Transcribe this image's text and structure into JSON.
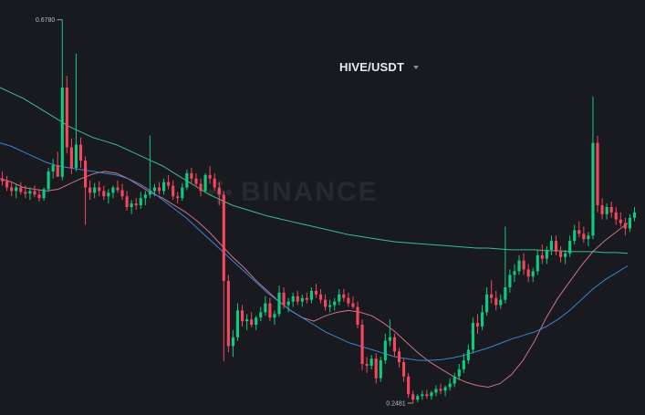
{
  "header": {
    "pair": "HIVE/USDT"
  },
  "watermark": {
    "text": "BINANCE"
  },
  "colors": {
    "background": "#181a20",
    "up": "#0ecb81",
    "down": "#f6465d",
    "ma_short": "#e07c96",
    "ma_mid": "#3f8fe0",
    "ma_long": "#3ecf9a"
  },
  "chart_data": {
    "type": "candlestick",
    "xlabel": "",
    "ylabel": "",
    "ylim": [
      0.245,
      0.69
    ],
    "grid": false,
    "annotations": {
      "high": {
        "label": "0.6780",
        "value": 0.678
      },
      "low": {
        "label": "0.2481",
        "value": 0.2481
      }
    },
    "ohlc": [
      [
        0.5,
        0.508,
        0.492,
        0.497
      ],
      [
        0.497,
        0.503,
        0.486,
        0.49
      ],
      [
        0.49,
        0.496,
        0.48,
        0.486
      ],
      [
        0.486,
        0.494,
        0.478,
        0.49
      ],
      [
        0.49,
        0.496,
        0.482,
        0.485
      ],
      [
        0.485,
        0.492,
        0.478,
        0.483
      ],
      [
        0.483,
        0.49,
        0.476,
        0.486
      ],
      [
        0.486,
        0.492,
        0.479,
        0.482
      ],
      [
        0.482,
        0.488,
        0.474,
        0.478
      ],
      [
        0.478,
        0.49,
        0.475,
        0.488
      ],
      [
        0.488,
        0.512,
        0.485,
        0.508
      ],
      [
        0.508,
        0.522,
        0.5,
        0.515
      ],
      [
        0.515,
        0.53,
        0.505,
        0.502
      ],
      [
        0.502,
        0.678,
        0.498,
        0.602
      ],
      [
        0.602,
        0.615,
        0.528,
        0.535
      ],
      [
        0.535,
        0.545,
        0.505,
        0.512
      ],
      [
        0.512,
        0.64,
        0.508,
        0.538
      ],
      [
        0.538,
        0.546,
        0.512,
        0.52
      ],
      [
        0.52,
        0.525,
        0.448,
        0.49
      ],
      [
        0.49,
        0.498,
        0.476,
        0.484
      ],
      [
        0.484,
        0.495,
        0.478,
        0.49
      ],
      [
        0.49,
        0.497,
        0.48,
        0.486
      ],
      [
        0.486,
        0.492,
        0.476,
        0.48
      ],
      [
        0.48,
        0.488,
        0.472,
        0.484
      ],
      [
        0.484,
        0.492,
        0.478,
        0.49
      ],
      [
        0.49,
        0.498,
        0.484,
        0.487
      ],
      [
        0.487,
        0.494,
        0.476,
        0.48
      ],
      [
        0.48,
        0.486,
        0.464,
        0.468
      ],
      [
        0.468,
        0.476,
        0.46,
        0.472
      ],
      [
        0.472,
        0.478,
        0.465,
        0.47
      ],
      [
        0.47,
        0.485,
        0.466,
        0.478
      ],
      [
        0.478,
        0.486,
        0.47,
        0.482
      ],
      [
        0.482,
        0.548,
        0.478,
        0.486
      ],
      [
        0.486,
        0.494,
        0.48,
        0.49
      ],
      [
        0.49,
        0.496,
        0.482,
        0.486
      ],
      [
        0.486,
        0.5,
        0.482,
        0.496
      ],
      [
        0.496,
        0.504,
        0.488,
        0.492
      ],
      [
        0.492,
        0.498,
        0.476,
        0.48
      ],
      [
        0.48,
        0.485,
        0.472,
        0.478
      ],
      [
        0.478,
        0.495,
        0.475,
        0.49
      ],
      [
        0.49,
        0.51,
        0.487,
        0.506
      ],
      [
        0.506,
        0.512,
        0.495,
        0.5
      ],
      [
        0.5,
        0.506,
        0.49,
        0.494
      ],
      [
        0.494,
        0.5,
        0.48,
        0.486
      ],
      [
        0.486,
        0.506,
        0.484,
        0.504
      ],
      [
        0.504,
        0.514,
        0.494,
        0.5
      ],
      [
        0.5,
        0.506,
        0.486,
        0.49
      ],
      [
        0.49,
        0.496,
        0.47,
        0.482
      ],
      [
        0.482,
        0.486,
        0.295,
        0.385
      ],
      [
        0.385,
        0.392,
        0.305,
        0.312
      ],
      [
        0.312,
        0.33,
        0.3,
        0.322
      ],
      [
        0.322,
        0.36,
        0.318,
        0.352
      ],
      [
        0.352,
        0.358,
        0.334,
        0.34
      ],
      [
        0.34,
        0.348,
        0.33,
        0.342
      ],
      [
        0.342,
        0.35,
        0.333,
        0.336
      ],
      [
        0.336,
        0.346,
        0.33,
        0.344
      ],
      [
        0.344,
        0.356,
        0.34,
        0.35
      ],
      [
        0.35,
        0.368,
        0.346,
        0.36
      ],
      [
        0.36,
        0.366,
        0.34,
        0.344
      ],
      [
        0.344,
        0.352,
        0.336,
        0.348
      ],
      [
        0.348,
        0.38,
        0.345,
        0.372
      ],
      [
        0.372,
        0.378,
        0.354,
        0.358
      ],
      [
        0.358,
        0.366,
        0.35,
        0.362
      ],
      [
        0.362,
        0.372,
        0.356,
        0.368
      ],
      [
        0.368,
        0.374,
        0.358,
        0.362
      ],
      [
        0.362,
        0.37,
        0.356,
        0.366
      ],
      [
        0.366,
        0.372,
        0.36,
        0.364
      ],
      [
        0.364,
        0.378,
        0.36,
        0.374
      ],
      [
        0.374,
        0.382,
        0.366,
        0.37
      ],
      [
        0.37,
        0.376,
        0.36,
        0.364
      ],
      [
        0.364,
        0.37,
        0.352,
        0.356
      ],
      [
        0.356,
        0.364,
        0.35,
        0.358
      ],
      [
        0.358,
        0.366,
        0.352,
        0.362
      ],
      [
        0.362,
        0.376,
        0.358,
        0.37
      ],
      [
        0.37,
        0.376,
        0.362,
        0.366
      ],
      [
        0.366,
        0.372,
        0.356,
        0.36
      ],
      [
        0.36,
        0.368,
        0.354,
        0.356
      ],
      [
        0.356,
        0.362,
        0.332,
        0.336
      ],
      [
        0.336,
        0.342,
        0.285,
        0.292
      ],
      [
        0.292,
        0.3,
        0.282,
        0.29
      ],
      [
        0.29,
        0.302,
        0.286,
        0.298
      ],
      [
        0.298,
        0.304,
        0.27,
        0.276
      ],
      [
        0.276,
        0.3,
        0.272,
        0.296
      ],
      [
        0.296,
        0.326,
        0.292,
        0.318
      ],
      [
        0.318,
        0.342,
        0.312,
        0.322
      ],
      [
        0.322,
        0.326,
        0.3,
        0.306
      ],
      [
        0.306,
        0.31,
        0.288,
        0.294
      ],
      [
        0.294,
        0.298,
        0.272,
        0.278
      ],
      [
        0.278,
        0.282,
        0.254,
        0.258
      ],
      [
        0.258,
        0.262,
        0.248,
        0.252
      ],
      [
        0.252,
        0.258,
        0.249,
        0.256
      ],
      [
        0.256,
        0.262,
        0.252,
        0.258
      ],
      [
        0.258,
        0.263,
        0.253,
        0.256
      ],
      [
        0.256,
        0.262,
        0.252,
        0.26
      ],
      [
        0.26,
        0.268,
        0.256,
        0.264
      ],
      [
        0.264,
        0.27,
        0.258,
        0.262
      ],
      [
        0.262,
        0.268,
        0.256,
        0.266
      ],
      [
        0.266,
        0.276,
        0.262,
        0.27
      ],
      [
        0.27,
        0.282,
        0.266,
        0.278
      ],
      [
        0.278,
        0.292,
        0.274,
        0.286
      ],
      [
        0.286,
        0.304,
        0.282,
        0.296
      ],
      [
        0.296,
        0.314,
        0.292,
        0.308
      ],
      [
        0.308,
        0.344,
        0.304,
        0.338
      ],
      [
        0.338,
        0.348,
        0.326,
        0.334
      ],
      [
        0.334,
        0.358,
        0.33,
        0.35
      ],
      [
        0.35,
        0.378,
        0.346,
        0.37
      ],
      [
        0.37,
        0.386,
        0.36,
        0.366
      ],
      [
        0.366,
        0.374,
        0.352,
        0.358
      ],
      [
        0.358,
        0.37,
        0.354,
        0.364
      ],
      [
        0.364,
        0.446,
        0.36,
        0.378
      ],
      [
        0.378,
        0.398,
        0.372,
        0.392
      ],
      [
        0.392,
        0.404,
        0.384,
        0.396
      ],
      [
        0.396,
        0.414,
        0.392,
        0.408
      ],
      [
        0.408,
        0.416,
        0.392,
        0.398
      ],
      [
        0.398,
        0.404,
        0.384,
        0.39
      ],
      [
        0.39,
        0.4,
        0.384,
        0.396
      ],
      [
        0.396,
        0.42,
        0.392,
        0.414
      ],
      [
        0.414,
        0.426,
        0.404,
        0.41
      ],
      [
        0.41,
        0.424,
        0.404,
        0.42
      ],
      [
        0.42,
        0.436,
        0.414,
        0.43
      ],
      [
        0.43,
        0.436,
        0.414,
        0.418
      ],
      [
        0.418,
        0.424,
        0.406,
        0.412
      ],
      [
        0.412,
        0.42,
        0.404,
        0.416
      ],
      [
        0.416,
        0.436,
        0.412,
        0.43
      ],
      [
        0.43,
        0.448,
        0.426,
        0.442
      ],
      [
        0.442,
        0.452,
        0.434,
        0.438
      ],
      [
        0.438,
        0.446,
        0.428,
        0.432
      ],
      [
        0.432,
        0.44,
        0.424,
        0.436
      ],
      [
        0.436,
        0.592,
        0.432,
        0.54
      ],
      [
        0.54,
        0.548,
        0.462,
        0.47
      ],
      [
        0.47,
        0.478,
        0.454,
        0.46
      ],
      [
        0.46,
        0.472,
        0.454,
        0.468
      ],
      [
        0.468,
        0.474,
        0.456,
        0.462
      ],
      [
        0.462,
        0.468,
        0.448,
        0.454
      ],
      [
        0.454,
        0.462,
        0.446,
        0.45
      ],
      [
        0.45,
        0.456,
        0.436,
        0.444
      ],
      [
        0.444,
        0.46,
        0.44,
        0.456
      ],
      [
        0.456,
        0.468,
        0.452,
        0.462
      ]
    ],
    "moving_averages": [
      {
        "color": "#e07c96",
        "values": [
          0.5,
          0.496,
          0.49,
          0.488,
          0.486,
          0.488,
          0.494,
          0.5,
          0.505,
          0.508,
          0.506,
          0.5,
          0.492,
          0.484,
          0.478,
          0.47,
          0.462,
          0.452,
          0.44,
          0.426,
          0.412,
          0.4,
          0.386,
          0.374,
          0.362,
          0.352,
          0.344,
          0.34,
          0.346,
          0.35,
          0.352,
          0.35,
          0.346,
          0.338,
          0.328,
          0.316,
          0.304,
          0.294,
          0.286,
          0.278,
          0.272,
          0.268,
          0.266,
          0.27,
          0.28,
          0.296,
          0.318,
          0.344,
          0.366,
          0.384,
          0.402,
          0.418,
          0.43,
          0.44,
          0.45
        ]
      },
      {
        "color": "#3f8fe0",
        "values": [
          0.54,
          0.536,
          0.53,
          0.524,
          0.518,
          0.514,
          0.512,
          0.51,
          0.508,
          0.506,
          0.504,
          0.5,
          0.494,
          0.486,
          0.476,
          0.466,
          0.456,
          0.444,
          0.432,
          0.42,
          0.408,
          0.396,
          0.384,
          0.372,
          0.362,
          0.352,
          0.344,
          0.336,
          0.328,
          0.322,
          0.316,
          0.312,
          0.308,
          0.304,
          0.3,
          0.298,
          0.296,
          0.296,
          0.297,
          0.299,
          0.302,
          0.306,
          0.31,
          0.315,
          0.32,
          0.324,
          0.328,
          0.334,
          0.342,
          0.352,
          0.364,
          0.376,
          0.386,
          0.394,
          0.402
        ]
      },
      {
        "color": "#3ecf9a",
        "values": [
          0.602,
          0.596,
          0.59,
          0.582,
          0.574,
          0.566,
          0.558,
          0.552,
          0.546,
          0.542,
          0.538,
          0.532,
          0.526,
          0.52,
          0.514,
          0.506,
          0.498,
          0.49,
          0.482,
          0.476,
          0.47,
          0.466,
          0.462,
          0.458,
          0.455,
          0.452,
          0.449,
          0.446,
          0.443,
          0.44,
          0.437,
          0.435,
          0.433,
          0.431,
          0.429,
          0.428,
          0.427,
          0.426,
          0.425,
          0.424,
          0.423,
          0.422,
          0.422,
          0.421,
          0.42,
          0.42,
          0.42,
          0.419,
          0.419,
          0.418,
          0.418,
          0.418,
          0.417,
          0.417,
          0.416
        ]
      }
    ]
  }
}
